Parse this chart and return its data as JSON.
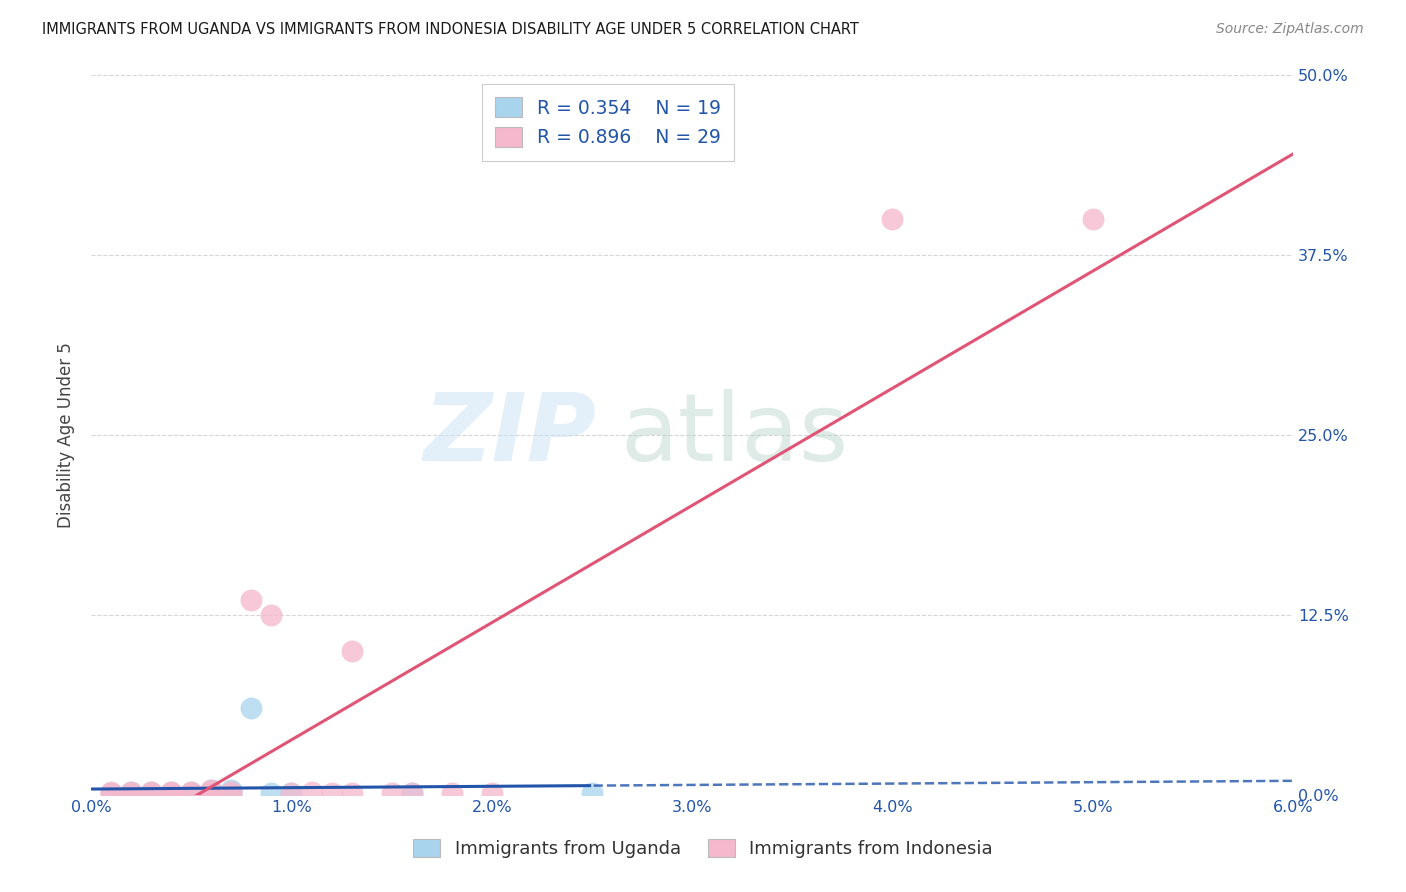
{
  "title": "IMMIGRANTS FROM UGANDA VS IMMIGRANTS FROM INDONESIA DISABILITY AGE UNDER 5 CORRELATION CHART",
  "source": "Source: ZipAtlas.com",
  "ylabel_label": "Disability Age Under 5",
  "x_range": [
    0.0,
    0.06
  ],
  "y_range": [
    0.0,
    0.5
  ],
  "watermark_zip": "ZIP",
  "watermark_atlas": "atlas",
  "legend_uganda_r": "R = 0.354",
  "legend_uganda_n": "N = 19",
  "legend_indonesia_r": "R = 0.896",
  "legend_indonesia_n": "N = 29",
  "uganda_color": "#a8d4ee",
  "indonesia_color": "#f5b8cc",
  "uganda_line_color": "#2255aa",
  "indonesia_line_color": "#e05575",
  "uganda_scatter_x": [
    0.001,
    0.002,
    0.002,
    0.003,
    0.003,
    0.004,
    0.004,
    0.005,
    0.005,
    0.006,
    0.006,
    0.007,
    0.007,
    0.007,
    0.008,
    0.009,
    0.01,
    0.016,
    0.025
  ],
  "uganda_scatter_y": [
    0.001,
    0.001,
    0.002,
    0.001,
    0.002,
    0.001,
    0.002,
    0.001,
    0.002,
    0.001,
    0.003,
    0.001,
    0.002,
    0.003,
    0.06,
    0.001,
    0.001,
    0.001,
    0.001
  ],
  "indonesia_scatter_x": [
    0.001,
    0.001,
    0.002,
    0.002,
    0.003,
    0.003,
    0.004,
    0.004,
    0.004,
    0.005,
    0.005,
    0.006,
    0.006,
    0.006,
    0.007,
    0.007,
    0.008,
    0.009,
    0.01,
    0.011,
    0.012,
    0.013,
    0.013,
    0.015,
    0.016,
    0.018,
    0.02,
    0.04,
    0.05
  ],
  "indonesia_scatter_y": [
    0.001,
    0.002,
    0.001,
    0.002,
    0.001,
    0.002,
    0.001,
    0.001,
    0.002,
    0.001,
    0.002,
    0.001,
    0.002,
    0.003,
    0.001,
    0.002,
    0.135,
    0.125,
    0.001,
    0.002,
    0.001,
    0.1,
    0.001,
    0.001,
    0.001,
    0.001,
    0.001,
    0.4,
    0.4
  ],
  "background_color": "#ffffff",
  "grid_color": "#cccccc"
}
